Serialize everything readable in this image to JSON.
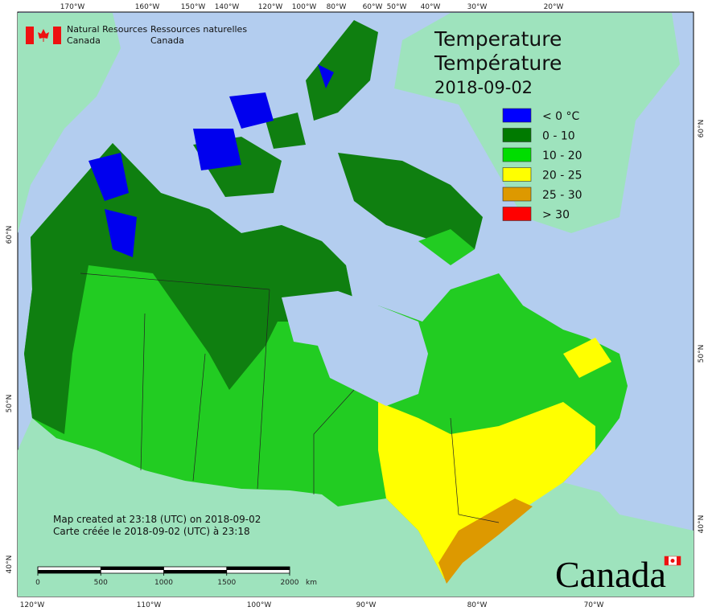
{
  "agency": {
    "en_1": "Natural Resources",
    "en_2": "Canada",
    "fr_1": "Ressources naturelles",
    "fr_2": "Canada"
  },
  "title": {
    "line_en": "Temperature",
    "line_fr": "Température",
    "date": "2018-09-02"
  },
  "legend": [
    {
      "label": "< 0 °C",
      "color": "#0000ff"
    },
    {
      "label": "0 - 10",
      "color": "#007a00"
    },
    {
      "label": "10 - 20",
      "color": "#00dd00"
    },
    {
      "label": "20 - 25",
      "color": "#ffff00"
    },
    {
      "label": "25 - 30",
      "color": "#dd9900"
    },
    {
      "label": "> 30",
      "color": "#ff0000"
    }
  ],
  "graticule": {
    "top": [
      "170°W",
      "160°W",
      "150°W",
      "140°W",
      "120°W",
      "100°W",
      "80°W",
      "60°W",
      "50°W",
      "40°W",
      "30°W",
      "20°W"
    ],
    "bottom": [
      "120°W",
      "110°W",
      "100°W",
      "90°W",
      "80°W",
      "70°W"
    ],
    "left": [
      "60°N",
      "50°N",
      "40°N"
    ],
    "right": [
      "60°N",
      "50°N",
      "40°N"
    ]
  },
  "notes": [
    "Map created at 23:18 (UTC) on 2018-09-02",
    "Carte créée le 2018-09-02 (UTC) à 23:18"
  ],
  "scale_bar": {
    "ticks": [
      0,
      500,
      1000,
      1500,
      2000
    ],
    "unit": "km"
  },
  "wordmark": "Canada"
}
